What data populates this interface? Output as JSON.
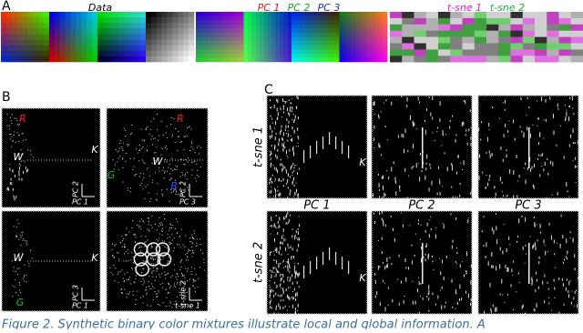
{
  "panel_a": {
    "label": "A",
    "data_title": "Data",
    "pc_titles": [
      "PC 1",
      "PC 2",
      "PC 3"
    ],
    "tsne_titles": [
      "t-sne 1",
      "t-sne 2"
    ]
  },
  "panel_b": {
    "label": "B",
    "plots": [
      {
        "labels": [
          "R",
          "W",
          "K"
        ],
        "y_axis": "PC 2",
        "x_axis": "PC 1"
      },
      {
        "labels": [
          "R",
          "W",
          "G",
          "B"
        ],
        "y_axis": "PC 2",
        "x_axis": "PC 3"
      },
      {
        "labels": [
          "W",
          "K",
          "G"
        ],
        "y_axis": "PC 3",
        "x_axis": "PC 1"
      },
      {
        "labels": [],
        "y_axis": "t-sne 2",
        "x_axis": "t-sne 1"
      }
    ]
  },
  "panel_c": {
    "label": "C",
    "row_labels": [
      "t-sne 1",
      "t-sne 2"
    ],
    "col_labels": [
      "PC 1",
      "PC 2",
      "PC 3"
    ],
    "point_labels": [
      "K",
      "K"
    ]
  },
  "caption": "Figure 2. Synthetic binary color mixtures illustrate local and global information. A"
}
